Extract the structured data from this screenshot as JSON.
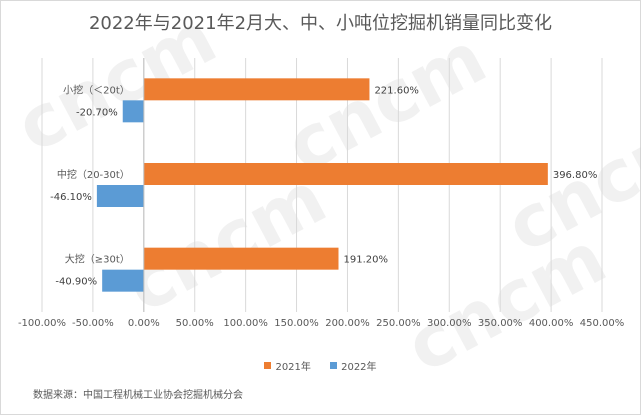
{
  "chart_data": {
    "type": "bar",
    "orientation": "horizontal",
    "title": "2022年与2021年2月大、中、小吨位挖掘机销量同比变化",
    "categories": [
      "小挖（＜20t）",
      "中挖（20-30t）",
      "大挖（≥30t）"
    ],
    "series": [
      {
        "name": "2021年",
        "color": "#ed7d31",
        "values": [
          221.6,
          396.8,
          191.2
        ],
        "labels": [
          "221.60%",
          "396.80%",
          "191.20%"
        ]
      },
      {
        "name": "2022年",
        "color": "#5b9bd5",
        "values": [
          -20.7,
          -46.1,
          -40.9
        ],
        "labels": [
          "-20.70%",
          "-46.10%",
          "-40.90%"
        ]
      }
    ],
    "xlim": [
      -100,
      450
    ],
    "xticks": [
      -100,
      -50,
      0,
      50,
      100,
      150,
      200,
      250,
      300,
      350,
      400,
      450
    ],
    "xtick_labels": [
      "-100.00%",
      "-50.00%",
      "0.00%",
      "50.00%",
      "100.00%",
      "150.00%",
      "200.00%",
      "250.00%",
      "300.00%",
      "350.00%",
      "400.00%",
      "450.00%"
    ],
    "grid": true,
    "legend_position": "bottom"
  },
  "legend": {
    "items": [
      "2021年",
      "2022年"
    ]
  },
  "source_note": "数据来源：中国工程机械工业协会挖掘机械分会",
  "watermark_text": "cncm"
}
